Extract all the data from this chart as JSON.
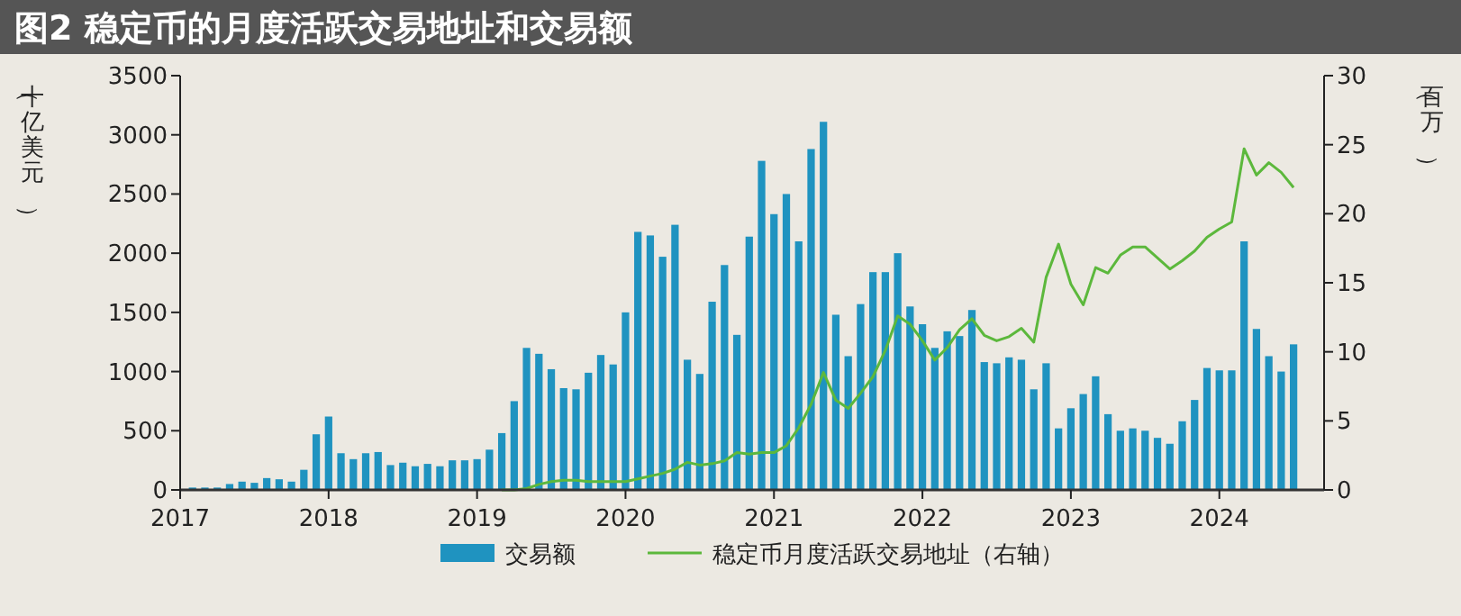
{
  "chart_data": {
    "type": "bar",
    "title": "图2  稳定币的月度活跃交易地址和交易额",
    "ylabel": "（十亿美元）",
    "y2label": "（百万）",
    "x": [
      "2017-02",
      "2017-03",
      "2017-04",
      "2017-05",
      "2017-06",
      "2017-07",
      "2017-08",
      "2017-09",
      "2017-10",
      "2017-11",
      "2017-12",
      "2018-01",
      "2018-02",
      "2018-03",
      "2018-04",
      "2018-05",
      "2018-06",
      "2018-07",
      "2018-08",
      "2018-09",
      "2018-10",
      "2018-11",
      "2018-12",
      "2019-01",
      "2019-02",
      "2019-03",
      "2019-04",
      "2019-05",
      "2019-06",
      "2019-07",
      "2019-08",
      "2019-09",
      "2019-10",
      "2019-11",
      "2019-12",
      "2020-01",
      "2020-02",
      "2020-03",
      "2020-04",
      "2020-05",
      "2020-06",
      "2020-07",
      "2020-08",
      "2020-09",
      "2020-10",
      "2020-11",
      "2020-12",
      "2021-01",
      "2021-02",
      "2021-03",
      "2021-04",
      "2021-05",
      "2021-06",
      "2021-07",
      "2021-08",
      "2021-09",
      "2021-10",
      "2021-11",
      "2021-12",
      "2022-01",
      "2022-02",
      "2022-03",
      "2022-04",
      "2022-05",
      "2022-06",
      "2022-07",
      "2022-08",
      "2022-09",
      "2022-10",
      "2022-11",
      "2022-12",
      "2023-01",
      "2023-02",
      "2023-03",
      "2023-04",
      "2023-05",
      "2023-06",
      "2023-07",
      "2023-08",
      "2023-09",
      "2023-10",
      "2023-11",
      "2023-12",
      "2024-01",
      "2024-02",
      "2024-03",
      "2024-04",
      "2024-05",
      "2024-06",
      "2024-07"
    ],
    "series": [
      {
        "name": "交易额",
        "color": "#1f93c0",
        "values": [
          20,
          20,
          20,
          50,
          70,
          60,
          100,
          90,
          70,
          170,
          470,
          620,
          310,
          260,
          310,
          320,
          210,
          230,
          200,
          220,
          200,
          250,
          250,
          260,
          340,
          480,
          750,
          1200,
          1150,
          1020,
          860,
          850,
          990,
          1140,
          1060,
          1500,
          2180,
          2150,
          1970,
          2240,
          1100,
          980,
          1590,
          1900,
          1310,
          2140,
          2780,
          2330,
          2500,
          2100,
          2880,
          3110,
          1480,
          1130,
          1570,
          1840,
          1840,
          2000,
          1550,
          1400,
          1200,
          1340,
          1300,
          1520,
          1080,
          1070,
          1120,
          1100,
          850,
          1070,
          520,
          690,
          810,
          960,
          640,
          500,
          520,
          500,
          440,
          390,
          580,
          760,
          1030,
          1010,
          1010,
          2100,
          1360,
          1130,
          1000,
          1230
        ]
      },
      {
        "name": "稳定币月度活跃交易地址（右轴）",
        "type": "line",
        "axis": "y2",
        "color": "#5cb83c",
        "x": [
          "2019-03",
          "2019-04",
          "2019-05",
          "2019-06",
          "2019-07",
          "2019-08",
          "2019-09",
          "2019-10",
          "2019-11",
          "2019-12",
          "2020-01",
          "2020-02",
          "2020-03",
          "2020-04",
          "2020-05",
          "2020-06",
          "2020-07",
          "2020-08",
          "2020-09",
          "2020-10",
          "2020-11",
          "2020-12",
          "2021-01",
          "2021-02",
          "2021-03",
          "2021-04",
          "2021-05",
          "2021-06",
          "2021-07",
          "2021-08",
          "2021-09",
          "2021-10",
          "2021-11",
          "2021-12",
          "2022-01",
          "2022-02",
          "2022-03",
          "2022-04",
          "2022-05",
          "2022-06",
          "2022-07",
          "2022-08",
          "2022-09",
          "2022-10",
          "2022-11",
          "2022-12",
          "2023-01",
          "2023-02",
          "2023-03",
          "2023-04",
          "2023-05",
          "2023-06",
          "2023-07",
          "2023-08",
          "2023-09",
          "2023-10",
          "2023-11",
          "2023-12",
          "2024-01",
          "2024-02",
          "2024-03",
          "2024-04",
          "2024-05",
          "2024-06",
          "2024-07"
        ],
        "values": [
          0,
          0,
          0.1,
          0.4,
          0.6,
          0.7,
          0.7,
          0.6,
          0.6,
          0.6,
          0.6,
          0.8,
          1.0,
          1.2,
          1.5,
          2.0,
          1.8,
          1.9,
          2.1,
          2.7,
          2.6,
          2.7,
          2.7,
          3.2,
          4.5,
          6.2,
          8.5,
          6.5,
          5.9,
          7.0,
          8.2,
          10.1,
          12.6,
          12.0,
          10.8,
          9.4,
          10.3,
          11.6,
          12.4,
          11.2,
          10.8,
          11.1,
          11.7,
          10.7,
          15.4,
          17.8,
          14.9,
          13.4,
          16.1,
          15.7,
          17.0,
          17.6,
          17.6,
          16.8,
          16.0,
          16.6,
          17.3,
          18.3,
          18.9,
          19.4,
          24.7,
          22.8,
          23.7,
          23.0,
          21.9
        ]
      }
    ],
    "xlim": [
      "2017-01",
      "2024-09-15"
    ],
    "xticks": [
      "2017",
      "2018",
      "2019",
      "2020",
      "2021",
      "2022",
      "2023",
      "2024"
    ],
    "ylim": [
      0,
      3500
    ],
    "yticks": [
      0,
      500,
      1000,
      1500,
      2000,
      2500,
      3000,
      3500
    ],
    "y2lim": [
      0,
      30
    ],
    "y2ticks": [
      0,
      5,
      10,
      15,
      20,
      25,
      30
    ],
    "legend": "bottom",
    "grid": false
  }
}
